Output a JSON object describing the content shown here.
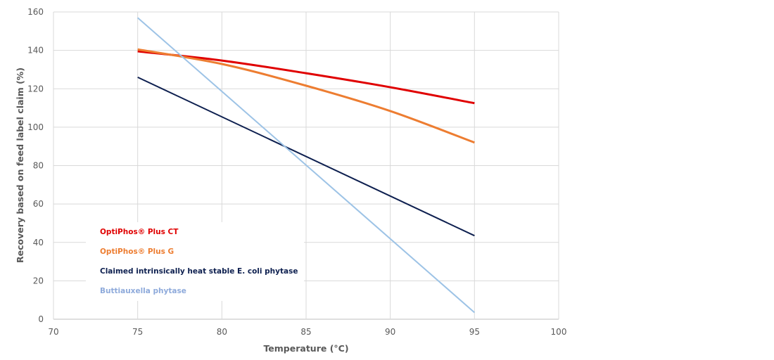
{
  "chart_data": {
    "type": "line",
    "title": "",
    "xlabel": "Temperature (°C)",
    "ylabel": "Recovery based on feed label claim (%)",
    "xlim": [
      70,
      100
    ],
    "ylim": [
      0,
      160
    ],
    "xticks": [
      70,
      75,
      80,
      85,
      90,
      95,
      100
    ],
    "yticks": [
      0,
      20,
      40,
      60,
      80,
      100,
      120,
      140,
      160
    ],
    "grid": true,
    "legend_position": "bottom-left inside plot",
    "series": [
      {
        "name": "OptiPhos® Plus CT",
        "color": "#e00000",
        "x": [
          75,
          80,
          85,
          90,
          95
        ],
        "values": [
          139.5,
          134.7,
          128.1,
          120.8,
          112.5
        ]
      },
      {
        "name": "OptiPhos® Plus G",
        "color": "#ed7d31",
        "x": [
          75,
          80,
          85,
          90,
          95
        ],
        "values": [
          140.5,
          132.9,
          121.6,
          108.4,
          92.0
        ]
      },
      {
        "name": "Claimed intrinsically heat stable E. coli phytase",
        "color": "#0d1f4f",
        "x": [
          75,
          95
        ],
        "values": [
          126.0,
          43.5
        ]
      },
      {
        "name": "Buttiauxella phytase",
        "color": "#9dc3e6",
        "x": [
          75,
          95
        ],
        "values": [
          157.0,
          3.5
        ]
      }
    ]
  }
}
